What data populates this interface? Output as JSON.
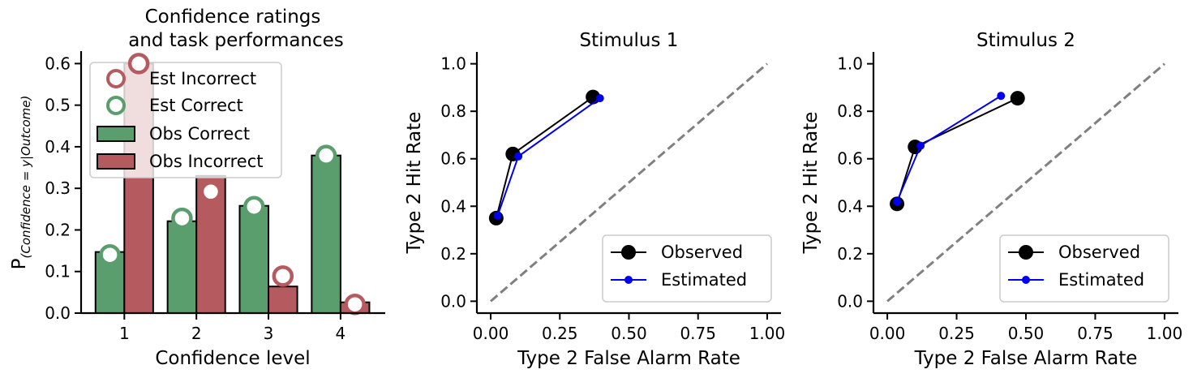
{
  "chart_data": [
    {
      "type": "bar",
      "title_lines": [
        "Confidence ratings",
        "and task performances"
      ],
      "xlabel": "Confidence level",
      "ylabel_main": "P",
      "ylabel_sub": "(Confidence = y|Outcome)",
      "categories": [
        "1",
        "2",
        "3",
        "4"
      ],
      "ylim": [
        0,
        0.63
      ],
      "yticks": [
        0.0,
        0.1,
        0.2,
        0.3,
        0.4,
        0.5,
        0.6
      ],
      "ytick_labels": [
        "0.0",
        "0.1",
        "0.2",
        "0.3",
        "0.4",
        "0.5",
        "0.6"
      ],
      "legend_position": "top-left",
      "series": [
        {
          "name": "Obs Correct",
          "kind": "bar",
          "color": "#5b9e6e",
          "values": [
            0.147,
            0.221,
            0.258,
            0.379
          ]
        },
        {
          "name": "Obs Incorrect",
          "kind": "bar",
          "color": "#b55b5f",
          "values": [
            0.6,
            0.33,
            0.064,
            0.026
          ]
        },
        {
          "name": "Est Correct",
          "kind": "marker",
          "color": "#5b9e6e",
          "values": [
            0.14,
            0.228,
            0.256,
            0.379
          ]
        },
        {
          "name": "Est Incorrect",
          "kind": "marker",
          "color": "#b55b5f",
          "values": [
            0.6,
            0.292,
            0.089,
            0.021
          ]
        }
      ],
      "legend_order": [
        "Est Incorrect",
        "Est Correct",
        "Obs Correct",
        "Obs Incorrect"
      ]
    },
    {
      "type": "line",
      "title": "Stimulus 1",
      "xlabel": "Type 2 False Alarm Rate",
      "ylabel": "Type 2 Hit Rate",
      "xlim": [
        -0.05,
        1.05
      ],
      "ylim": [
        -0.05,
        1.05
      ],
      "xticks": [
        0.0,
        0.25,
        0.5,
        0.75,
        1.0
      ],
      "xtick_labels": [
        "0.00",
        "0.25",
        "0.50",
        "0.75",
        "1.00"
      ],
      "yticks": [
        0.0,
        0.2,
        0.4,
        0.6,
        0.8,
        1.0
      ],
      "ytick_labels": [
        "0.0",
        "0.2",
        "0.4",
        "0.6",
        "0.8",
        "1.0"
      ],
      "legend_position": "bottom-right",
      "diagonal": true,
      "series": [
        {
          "name": "Observed",
          "color": "#000000",
          "x": [
            0.02,
            0.08,
            0.37
          ],
          "y": [
            0.35,
            0.62,
            0.86
          ]
        },
        {
          "name": "Estimated",
          "color": "#0000ee",
          "x": [
            0.025,
            0.1,
            0.395
          ],
          "y": [
            0.36,
            0.61,
            0.855
          ]
        }
      ]
    },
    {
      "type": "line",
      "title": "Stimulus 2",
      "xlabel": "Type 2 False Alarm Rate",
      "ylabel": "Type 2 Hit Rate",
      "xlim": [
        -0.05,
        1.05
      ],
      "ylim": [
        -0.05,
        1.05
      ],
      "xticks": [
        0.0,
        0.25,
        0.5,
        0.75,
        1.0
      ],
      "xtick_labels": [
        "0.00",
        "0.25",
        "0.50",
        "0.75",
        "1.00"
      ],
      "yticks": [
        0.0,
        0.2,
        0.4,
        0.6,
        0.8,
        1.0
      ],
      "ytick_labels": [
        "0.0",
        "0.2",
        "0.4",
        "0.6",
        "0.8",
        "1.0"
      ],
      "legend_position": "bottom-right",
      "diagonal": true,
      "series": [
        {
          "name": "Observed",
          "color": "#000000",
          "x": [
            0.035,
            0.1,
            0.47
          ],
          "y": [
            0.41,
            0.65,
            0.855
          ]
        },
        {
          "name": "Estimated",
          "color": "#0000ee",
          "x": [
            0.035,
            0.12,
            0.41
          ],
          "y": [
            0.42,
            0.655,
            0.865
          ]
        }
      ]
    }
  ]
}
